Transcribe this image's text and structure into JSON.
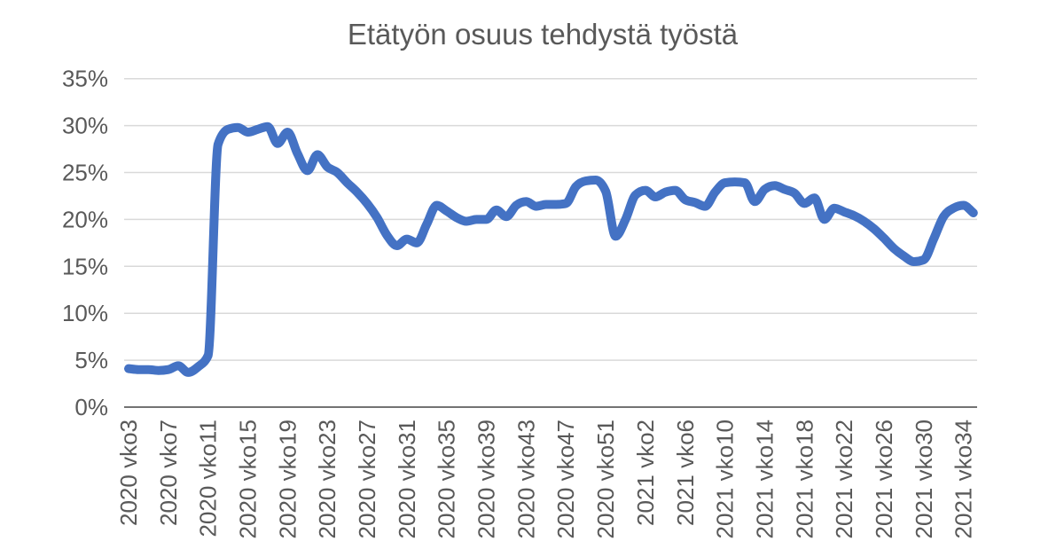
{
  "style": {
    "background": "#ffffff",
    "line_color": "#4472C4",
    "grid_color": "#D9D9D9",
    "axis_color": "#737373",
    "text_color": "#595959"
  },
  "chart_data": {
    "type": "line",
    "title": "Etätyön osuus tehdystä työstä",
    "xlabel": "",
    "ylabel": "",
    "ylim": [
      0,
      35
    ],
    "ytick_step": 5,
    "ytick_labels": [
      "0%",
      "5%",
      "10%",
      "15%",
      "20%",
      "25%",
      "30%",
      "35%"
    ],
    "grid": true,
    "legend": "none",
    "x_tick_every": 4,
    "x_tick_labels": [
      "2020 vko3",
      "2020 vko7",
      "2020 vko11",
      "2020 vko15",
      "2020 vko19",
      "2020 vko23",
      "2020 vko27",
      "2020 vko31",
      "2020 vko35",
      "2020 vko39",
      "2020 vko43",
      "2020 vko47",
      "2020 vko51",
      "2021 vko2",
      "2021 vko6",
      "2021 vko10",
      "2021 vko14",
      "2021 vko18",
      "2021 vko22",
      "2021 vko26",
      "2021 vko30",
      "2021 vko34"
    ],
    "categories": [
      "2020 vko3",
      "2020 vko4",
      "2020 vko5",
      "2020 vko6",
      "2020 vko7",
      "2020 vko8",
      "2020 vko9",
      "2020 vko10",
      "2020 vko11",
      "2020 vko12",
      "2020 vko13",
      "2020 vko14",
      "2020 vko15",
      "2020 vko16",
      "2020 vko17",
      "2020 vko18",
      "2020 vko19",
      "2020 vko20",
      "2020 vko21",
      "2020 vko22",
      "2020 vko23",
      "2020 vko24",
      "2020 vko25",
      "2020 vko26",
      "2020 vko27",
      "2020 vko28",
      "2020 vko29",
      "2020 vko30",
      "2020 vko31",
      "2020 vko32",
      "2020 vko33",
      "2020 vko34",
      "2020 vko35",
      "2020 vko36",
      "2020 vko37",
      "2020 vko38",
      "2020 vko39",
      "2020 vko40",
      "2020 vko41",
      "2020 vko42",
      "2020 vko43",
      "2020 vko44",
      "2020 vko45",
      "2020 vko46",
      "2020 vko47",
      "2020 vko48",
      "2020 vko49",
      "2020 vko50",
      "2020 vko51",
      "2020 vko52",
      "2020 vko53",
      "2021 vko1",
      "2021 vko2",
      "2021 vko3",
      "2021 vko4",
      "2021 vko5",
      "2021 vko6",
      "2021 vko7",
      "2021 vko8",
      "2021 vko9",
      "2021 vko10",
      "2021 vko11",
      "2021 vko12",
      "2021 vko13",
      "2021 vko14",
      "2021 vko15",
      "2021 vko16",
      "2021 vko17",
      "2021 vko18",
      "2021 vko19",
      "2021 vko20",
      "2021 vko21",
      "2021 vko22",
      "2021 vko23",
      "2021 vko24",
      "2021 vko25",
      "2021 vko26",
      "2021 vko27",
      "2021 vko28",
      "2021 vko29",
      "2021 vko30",
      "2021 vko31",
      "2021 vko32",
      "2021 vko33",
      "2021 vko34",
      "2021 vko35"
    ],
    "series": [
      {
        "color": "#4472C4",
        "smooth": true,
        "values": [
          4.1,
          4.0,
          4.0,
          3.9,
          4.0,
          4.4,
          3.7,
          4.3,
          5.5,
          28.0,
          29.6,
          29.8,
          29.3,
          29.6,
          29.9,
          28.1,
          29.3,
          27.0,
          25.2,
          26.9,
          25.6,
          25.0,
          23.9,
          22.9,
          21.7,
          20.2,
          18.3,
          17.2,
          17.9,
          17.5,
          19.5,
          21.5,
          20.9,
          20.2,
          19.8,
          20.0,
          20.0,
          21.0,
          20.3,
          21.5,
          21.9,
          21.4,
          21.6,
          21.6,
          21.7,
          23.5,
          24.1,
          24.2,
          23.0,
          18.2,
          20.0,
          22.6,
          23.1,
          22.4,
          22.9,
          23.1,
          22.1,
          21.8,
          21.4,
          22.9,
          23.9,
          24.0,
          23.9,
          21.9,
          23.2,
          23.6,
          23.2,
          22.8,
          21.7,
          22.3,
          20.0,
          21.2,
          20.8,
          20.4,
          19.8,
          19.0,
          18.0,
          16.9,
          16.1,
          15.5,
          15.7,
          17.9,
          20.3,
          21.2,
          21.5,
          20.7
        ]
      }
    ]
  }
}
